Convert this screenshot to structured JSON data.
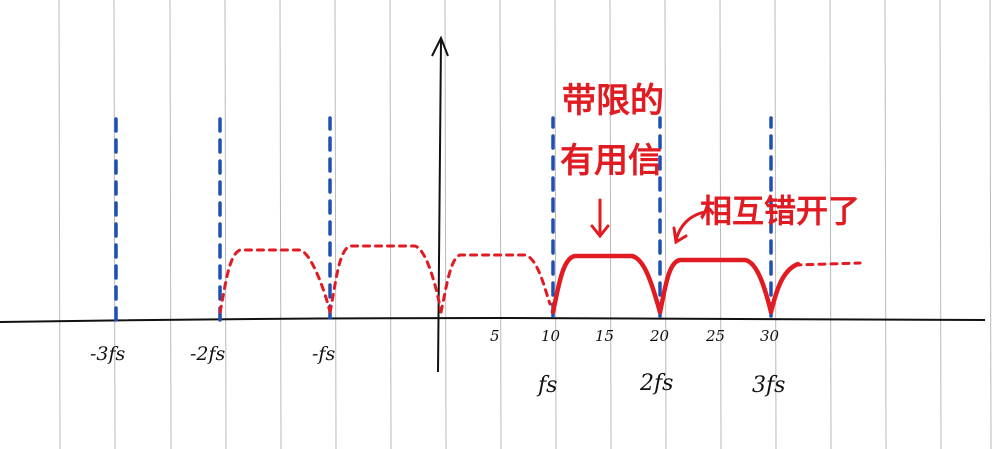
{
  "colors": {
    "paper": "#ffffff",
    "rule_lines": "#b9b9b9",
    "axis": "#111111",
    "sampling_pulses": "#1f4fb5",
    "spectrum": "#e11b22"
  },
  "axis_ticks": {
    "numbers": [
      "5",
      "10",
      "15",
      "20",
      "25",
      "30"
    ],
    "sampling_marks": [
      "-3fs",
      "-2fs",
      "-fs",
      "fs",
      "2fs",
      "3fs"
    ]
  },
  "annotations": {
    "band_limited_line1": "带限的",
    "band_limited_line2": "有用信",
    "staggered": "相互错开了"
  }
}
